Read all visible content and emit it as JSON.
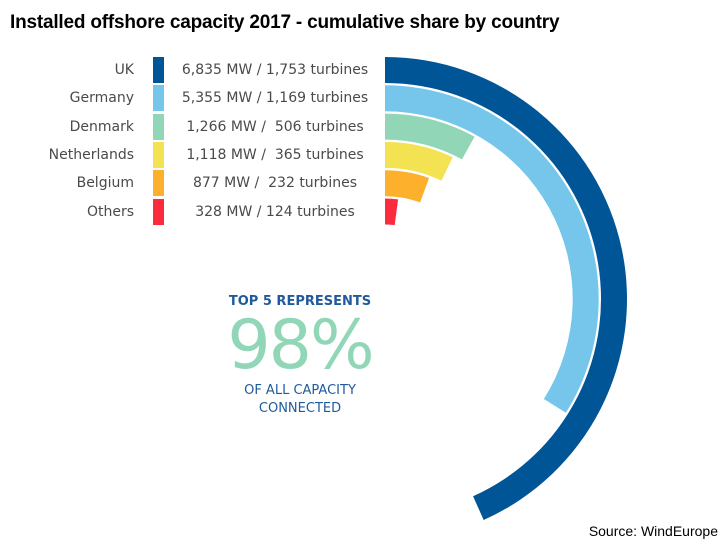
{
  "title": "Installed offshore capacity 2017 - cumulative share by country",
  "chart_data": {
    "type": "radial-bar",
    "title": "Installed offshore capacity 2017 - cumulative share by country",
    "categories": [
      "UK",
      "Germany",
      "Denmark",
      "Netherlands",
      "Belgium",
      "Others"
    ],
    "series": [
      {
        "values": [
          6835,
          5355,
          1266,
          1118,
          877,
          328
        ]
      }
    ],
    "value_labels": [
      "6,835 MW / 1,753 turbines",
      "5,355 MW / 1,169 turbines",
      "1,266 MW /  506 turbines",
      "1,118 MW /  365 turbines",
      "877 MW /  232 turbines",
      "328 MW / 124 turbines"
    ],
    "turbines": [
      1753,
      1169,
      506,
      365,
      232,
      124
    ],
    "colors": [
      "#005596",
      "#75c6ea",
      "#92d6b8",
      "#f3e353",
      "#fdb02c",
      "#fb2c3d"
    ],
    "annotation": {
      "line1": "TOP 5 REPRESENTS",
      "big": "98%",
      "line2": "OF ALL CAPACITY",
      "line3": "CONNECTED"
    }
  },
  "source": "Source: WindEurope"
}
